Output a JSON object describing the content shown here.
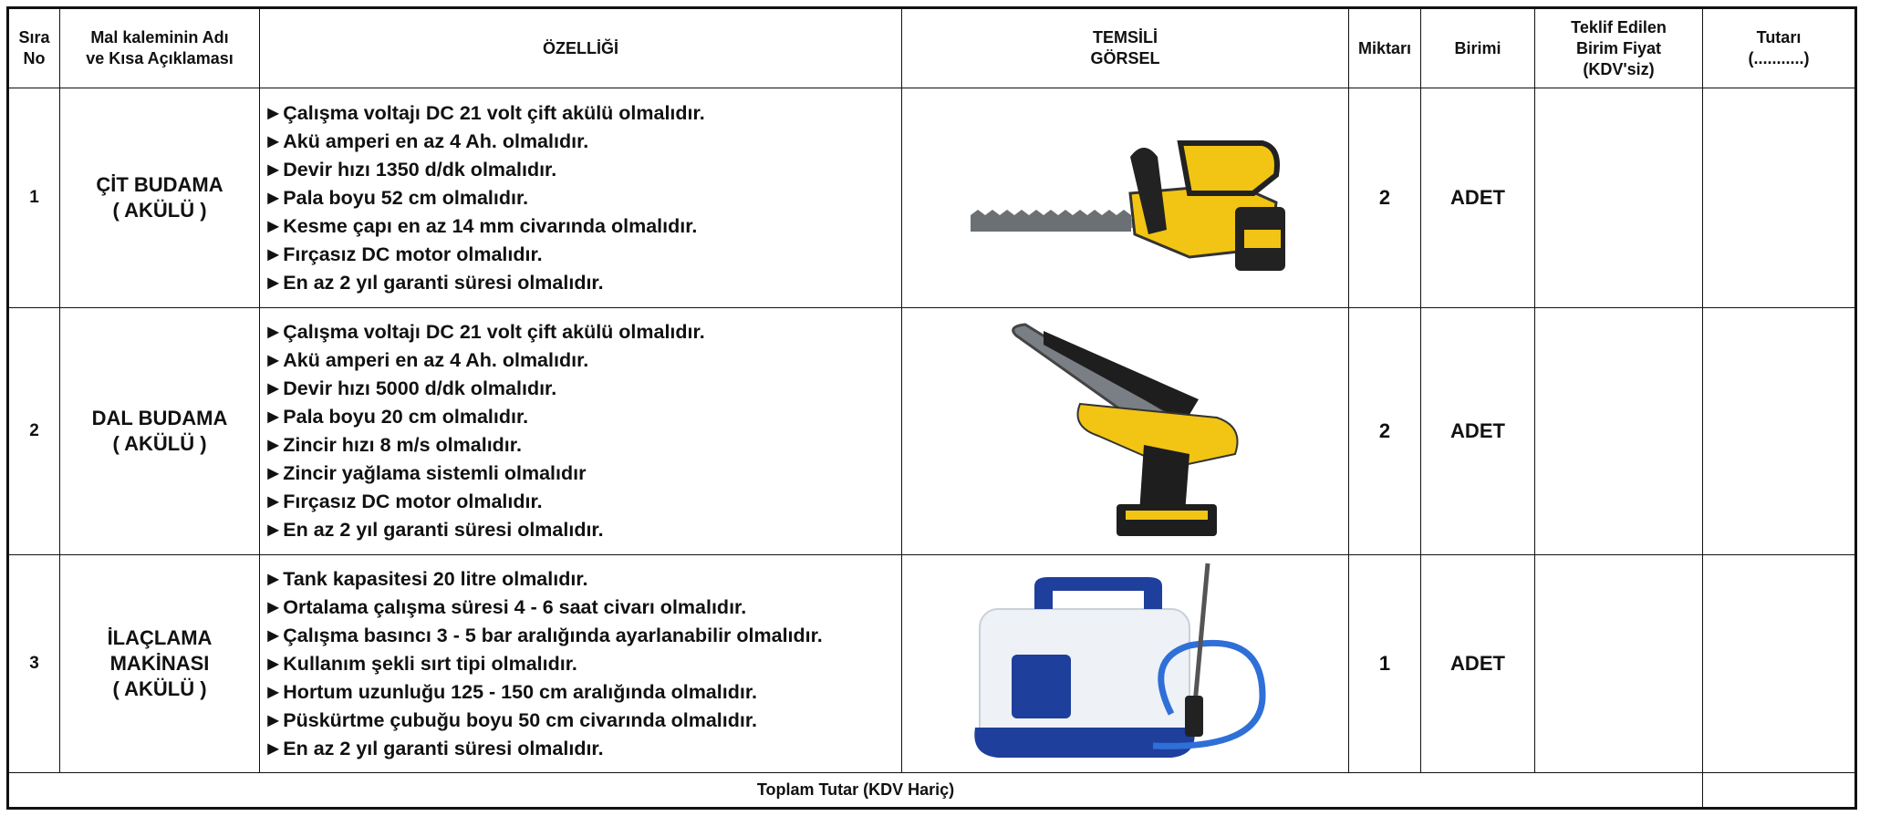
{
  "header": {
    "columns": [
      [
        "Sıra",
        "No"
      ],
      [
        "Mal kaleminin Adı",
        "ve Kısa Açıklaması"
      ],
      [
        "ÖZELLİĞİ"
      ],
      [
        "TEMSİLİ",
        "GÖRSEL"
      ],
      [
        "Miktarı"
      ],
      [
        "Birimi"
      ],
      [
        "Teklif Edilen",
        "Birim Fiyat",
        "(KDV'siz)"
      ],
      [
        "Tutarı",
        "(...........)"
      ]
    ]
  },
  "rows": [
    {
      "no": "1",
      "name": [
        "ÇİT BUDAMA",
        "( AKÜLÜ )"
      ],
      "features": [
        "►Çalışma voltajı DC 21 volt çift akülü olmalıdır.",
        "►Akü amperi en az 4 Ah. olmalıdır.",
        "►Devir hızı 1350 d/dk olmalıdır.",
        "►Pala boyu 52 cm olmalıdır.",
        "►Kesme çapı en az 14 mm civarında olmalıdır.",
        "►Fırçasız DC motor olmalıdır.",
        "►En az 2 yıl garanti süresi olmalıdır."
      ],
      "quantity": "2",
      "unit": "ADET"
    },
    {
      "no": "2",
      "name": [
        "DAL BUDAMA",
        "( AKÜLÜ )"
      ],
      "features": [
        "►Çalışma voltajı DC 21 volt çift akülü olmalıdır.",
        "►Akü amperi en az 4 Ah. olmalıdır.",
        "►Devir hızı 5000 d/dk olmalıdır.",
        "►Pala boyu 20 cm olmalıdır.",
        "►Zincir hızı 8 m/s olmalıdır.",
        "►Zincir yağlama sistemli olmalıdır",
        "►Fırçasız DC motor olmalıdır.",
        "►En az 2 yıl garanti süresi olmalıdır."
      ],
      "quantity": "2",
      "unit": "ADET"
    },
    {
      "no": "3",
      "name": [
        "İLAÇLAMA",
        "MAKİNASI",
        "( AKÜLÜ )"
      ],
      "features": [
        "►Tank kapasitesi 20 litre olmalıdır.",
        "►Ortalama çalışma süresi 4 - 6 saat civarı olmalıdır.",
        "►Çalışma basıncı 3 - 5 bar aralığında ayarlanabilir olmalıdır.",
        "►Kullanım şekli sırt tipi olmalıdır.",
        "►Hortum uzunluğu 125 - 150 cm aralığında olmalıdır.",
        "►Püskürtme çubuğu boyu 50 cm civarında olmalıdır.",
        "►En az 2 yıl garanti süresi olmalıdır."
      ],
      "quantity": "1",
      "unit": "ADET"
    }
  ],
  "footer": {
    "total_label": "Toplam Tutar (KDV Hariç)"
  }
}
